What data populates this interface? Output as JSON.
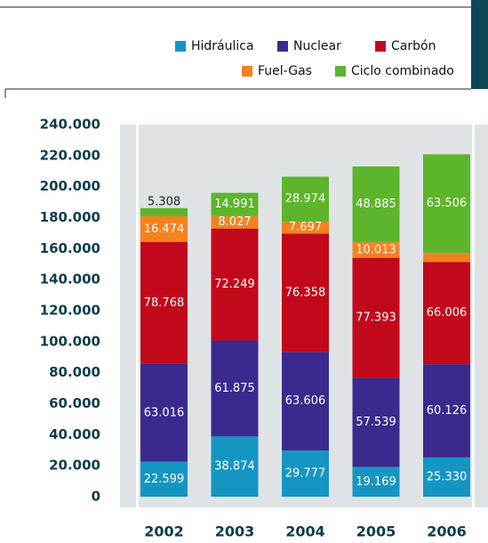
{
  "chart_data": {
    "type": "stacked_bar",
    "categories": [
      "2002",
      "2003",
      "2004",
      "2005",
      "2006"
    ],
    "series": [
      {
        "name": "Hidráulica",
        "color": "#1596c2",
        "values": [
          22599,
          38874,
          29777,
          19169,
          25330
        ],
        "value_labels": [
          "22.599",
          "38.874",
          "29.777",
          "19.169",
          "25.330"
        ]
      },
      {
        "name": "Nuclear",
        "color": "#3b2a8e",
        "values": [
          63016,
          61875,
          63606,
          57539,
          60126
        ],
        "value_labels": [
          "63.016",
          "61.875",
          "63.606",
          "57.539",
          "60.126"
        ]
      },
      {
        "name": "Carbón",
        "color": "#c2091b",
        "values": [
          78768,
          72249,
          76358,
          77393,
          66006
        ],
        "value_labels": [
          "78.768",
          "72.249",
          "76.358",
          "77.393",
          "66.006"
        ]
      },
      {
        "name": "Fuel-Gas",
        "color": "#f5821f",
        "values": [
          16474,
          8027,
          7697,
          10013,
          5905
        ],
        "value_labels": [
          "16.474",
          "8.027",
          "7.697",
          "10.013",
          "5.905"
        ]
      },
      {
        "name": "Ciclo combinado",
        "color": "#5db52b",
        "values": [
          5308,
          14991,
          28974,
          48885,
          63506
        ],
        "value_labels": [
          "5.308",
          "14.991",
          "28.974",
          "48.885",
          "63.506"
        ]
      }
    ],
    "ylim": [
      0,
      240000
    ],
    "yticks": [
      0,
      {
        "value": 20000,
        "label": "20.000"
      },
      {
        "value": 40000,
        "label": "40.000"
      },
      {
        "value": 60000,
        "label": "60.000"
      },
      {
        "value": 80000,
        "label": "80.000"
      },
      {
        "value": 100000,
        "label": "100.000"
      },
      {
        "value": 120000,
        "label": "120.000"
      },
      {
        "value": 140000,
        "label": "140.000"
      },
      {
        "value": 160000,
        "label": "160.000"
      },
      {
        "value": 180000,
        "label": "180.000"
      },
      {
        "value": 200000,
        "label": "200.000"
      },
      {
        "value": 220000,
        "label": "220.000"
      },
      {
        "value": 240000,
        "label": "240.000"
      }
    ]
  }
}
